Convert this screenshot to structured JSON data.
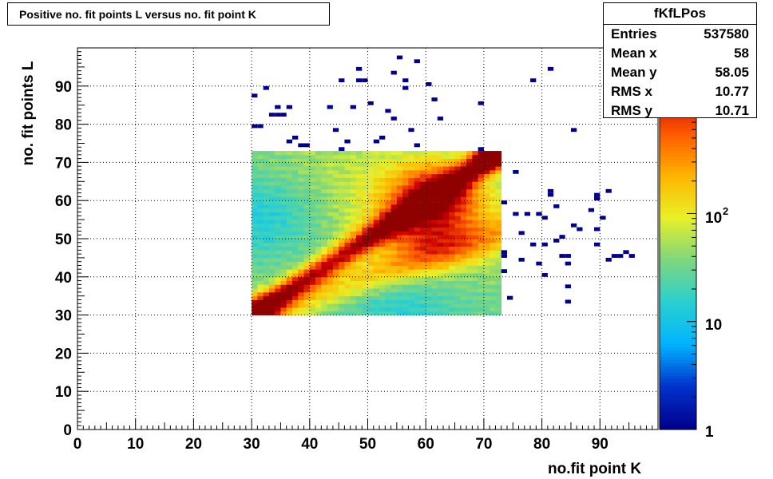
{
  "title": "Positive no. fit points L versus no. fit point K",
  "stats": {
    "name": "fKfLPos",
    "rows": [
      {
        "label": "Entries",
        "value": "537580"
      },
      {
        "label": "Mean x",
        "value": "58"
      },
      {
        "label": "Mean y",
        "value": "58.05"
      },
      {
        "label": "RMS x",
        "value": "10.77"
      },
      {
        "label": "RMS y",
        "value": "10.71"
      }
    ]
  },
  "chart_data": {
    "type": "heatmap",
    "xlabel": "no.fit point K",
    "ylabel": "no. fit points  L",
    "xlim": [
      0,
      100
    ],
    "ylim": [
      0,
      100
    ],
    "x_ticks": [
      0,
      10,
      20,
      30,
      40,
      50,
      60,
      70,
      80,
      90
    ],
    "y_ticks": [
      0,
      10,
      20,
      30,
      40,
      50,
      60,
      70,
      80,
      90
    ],
    "grid": true,
    "bin_width": 1,
    "dense_region": {
      "x": [
        30,
        73
      ],
      "y": [
        30,
        73
      ]
    },
    "hot_spots": [
      {
        "x": 62,
        "y": 63,
        "level": "peak"
      },
      {
        "x": 71,
        "y": 71,
        "level": "peak"
      },
      {
        "x": 31,
        "y": 31,
        "level": "high"
      }
    ],
    "color_scale": {
      "type": "log",
      "min": 1,
      "labels": [
        "1",
        "10",
        "10",
        "2"
      ],
      "colors": [
        "#00008c",
        "#0033cc",
        "#00b4ff",
        "#2ad0d0",
        "#7ed67e",
        "#e8f028",
        "#ffb400",
        "#ff5a00",
        "#c80000",
        "#7a0000"
      ]
    },
    "sparse_points": [
      [
        55,
        97
      ],
      [
        58,
        96
      ],
      [
        48,
        94
      ],
      [
        54,
        93
      ],
      [
        81,
        94
      ],
      [
        45,
        91
      ],
      [
        48,
        91
      ],
      [
        49,
        91
      ],
      [
        56,
        91
      ],
      [
        60,
        90
      ],
      [
        78,
        91
      ],
      [
        32,
        89
      ],
      [
        56,
        89
      ],
      [
        30,
        87
      ],
      [
        61,
        86
      ],
      [
        50,
        85
      ],
      [
        69,
        85
      ],
      [
        34,
        84
      ],
      [
        36,
        84
      ],
      [
        43,
        84
      ],
      [
        47,
        84
      ],
      [
        53,
        83
      ],
      [
        33,
        82
      ],
      [
        34,
        82
      ],
      [
        35,
        82
      ],
      [
        54,
        81
      ],
      [
        62,
        81
      ],
      [
        30,
        79
      ],
      [
        31,
        79
      ],
      [
        44,
        78
      ],
      [
        57,
        78
      ],
      [
        85,
        78
      ],
      [
        37,
        76
      ],
      [
        36,
        75
      ],
      [
        46,
        75
      ],
      [
        51,
        75
      ],
      [
        52,
        76
      ],
      [
        38,
        74
      ],
      [
        39,
        74
      ],
      [
        45,
        73
      ],
      [
        58,
        74
      ],
      [
        69,
        73
      ],
      [
        75,
        67
      ],
      [
        81,
        62
      ],
      [
        81,
        61
      ],
      [
        89,
        61
      ],
      [
        89,
        60
      ],
      [
        91,
        62
      ],
      [
        73,
        59
      ],
      [
        82,
        58
      ],
      [
        75,
        56
      ],
      [
        77,
        56
      ],
      [
        79,
        56
      ],
      [
        88,
        57
      ],
      [
        80,
        55
      ],
      [
        90,
        55
      ],
      [
        85,
        53
      ],
      [
        86,
        52
      ],
      [
        89,
        52
      ],
      [
        76,
        51
      ],
      [
        83,
        50
      ],
      [
        82,
        49
      ],
      [
        78,
        48
      ],
      [
        80,
        48
      ],
      [
        89,
        48
      ],
      [
        73,
        46
      ],
      [
        73,
        45
      ],
      [
        83,
        45
      ],
      [
        84,
        45
      ],
      [
        76,
        44
      ],
      [
        79,
        43
      ],
      [
        84,
        43
      ],
      [
        91,
        44
      ],
      [
        92,
        45
      ],
      [
        93,
        45
      ],
      [
        94,
        46
      ],
      [
        95,
        45
      ],
      [
        73,
        41
      ],
      [
        80,
        40
      ],
      [
        84,
        37
      ],
      [
        74,
        34
      ],
      [
        84,
        33
      ]
    ]
  }
}
